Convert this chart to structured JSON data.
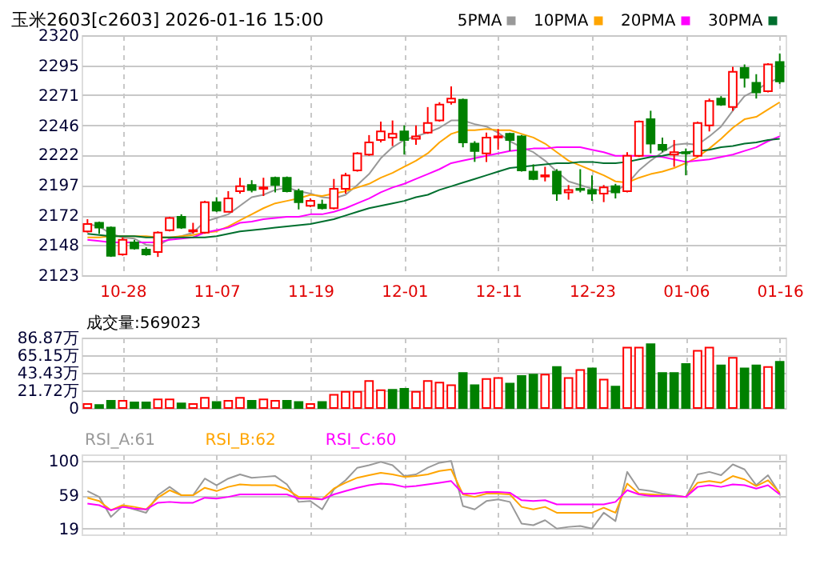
{
  "chart_data": [
    {
      "type": "candlestick",
      "title": "玉米2603[c2603] 2026-01-16 15:00",
      "categories": [
        null,
        null,
        null,
        "10-28",
        null,
        null,
        null,
        null,
        null,
        null,
        null,
        "11-07",
        null,
        null,
        null,
        null,
        null,
        null,
        null,
        "11-19",
        null,
        null,
        null,
        null,
        null,
        null,
        null,
        "12-01",
        null,
        null,
        null,
        null,
        null,
        null,
        null,
        "12-11",
        null,
        null,
        null,
        null,
        null,
        null,
        null,
        "12-23",
        null,
        null,
        null,
        null,
        null,
        null,
        null,
        "01-06",
        null,
        null,
        null,
        null,
        null,
        null,
        null,
        "01-16"
      ],
      "ohlc": [
        [
          2159,
          2169,
          2158,
          2165
        ],
        [
          2166,
          2167,
          2157,
          2162
        ],
        [
          2162,
          2163,
          2138,
          2139
        ],
        [
          2140,
          2154,
          2139,
          2152
        ],
        [
          2150,
          2152,
          2144,
          2145
        ],
        [
          2144,
          2146,
          2139,
          2140
        ],
        [
          2142,
          2159,
          2138,
          2158
        ],
        [
          2160,
          2171,
          2159,
          2170
        ],
        [
          2171,
          2173,
          2161,
          2162
        ],
        [
          2159,
          2166,
          2157,
          2160
        ],
        [
          2158,
          2184,
          2157,
          2183
        ],
        [
          2183,
          2187,
          2175,
          2176
        ],
        [
          2175,
          2192,
          2175,
          2186
        ],
        [
          2192,
          2203,
          2190,
          2196
        ],
        [
          2197,
          2201,
          2191,
          2193
        ],
        [
          2194,
          2203,
          2188,
          2195
        ],
        [
          2203,
          2204,
          2191,
          2197
        ],
        [
          2203,
          2204,
          2191,
          2192
        ],
        [
          2192,
          2194,
          2177,
          2183
        ],
        [
          2180,
          2186,
          2179,
          2184
        ],
        [
          2181,
          2185,
          2177,
          2178
        ],
        [
          2178,
          2202,
          2177,
          2194
        ],
        [
          2194,
          2207,
          2190,
          2205
        ],
        [
          2209,
          2224,
          2208,
          2223
        ],
        [
          2222,
          2238,
          2221,
          2232
        ],
        [
          2234,
          2249,
          2232,
          2241
        ],
        [
          2236,
          2250,
          2229,
          2239
        ],
        [
          2241,
          2246,
          2222,
          2234
        ],
        [
          2235,
          2246,
          2230,
          2237
        ],
        [
          2240,
          2261,
          2239,
          2248
        ],
        [
          2250,
          2265,
          2249,
          2263
        ],
        [
          2265,
          2278,
          2263,
          2268
        ],
        [
          2267,
          2268,
          2228,
          2232
        ],
        [
          2231,
          2233,
          2216,
          2225
        ],
        [
          2223,
          2240,
          2216,
          2236
        ],
        [
          2236,
          2243,
          2226,
          2237
        ],
        [
          2239,
          2240,
          2225,
          2234
        ],
        [
          2237,
          2238,
          2208,
          2209
        ],
        [
          2208,
          2214,
          2201,
          2202
        ],
        [
          2204,
          2212,
          2200,
          2205
        ],
        [
          2208,
          2210,
          2184,
          2190
        ],
        [
          2191,
          2197,
          2185,
          2193
        ],
        [
          2194,
          2210,
          2191,
          2193
        ],
        [
          2193,
          2205,
          2184,
          2190
        ],
        [
          2190,
          2197,
          2183,
          2195
        ],
        [
          2196,
          2198,
          2186,
          2191
        ],
        [
          2192,
          2224,
          2191,
          2221
        ],
        [
          2221,
          2250,
          2220,
          2249
        ],
        [
          2251,
          2258,
          2223,
          2231
        ],
        [
          2230,
          2236,
          2224,
          2226
        ],
        [
          2222,
          2234,
          2212,
          2224
        ],
        [
          2224,
          2227,
          2205,
          2223
        ],
        [
          2221,
          2249,
          2220,
          2248
        ],
        [
          2246,
          2268,
          2241,
          2266
        ],
        [
          2268,
          2270,
          2262,
          2263
        ],
        [
          2261,
          2294,
          2258,
          2290
        ],
        [
          2293,
          2296,
          2277,
          2285
        ],
        [
          2281,
          2288,
          2268,
          2273
        ],
        [
          2274,
          2297,
          2273,
          2296
        ],
        [
          2298,
          2305,
          2280,
          2282
        ]
      ],
      "colors": [
        "#ff0000",
        "#008000",
        "#008000",
        "#ff0000",
        "#008000",
        "#008000",
        "#ff0000",
        "#ff0000",
        "#008000",
        "#ff0000",
        "#ff0000",
        "#008000",
        "#ff0000",
        "#ff0000",
        "#008000",
        "#ff0000",
        "#008000",
        "#008000",
        "#008000",
        "#ff0000",
        "#008000",
        "#ff0000",
        "#ff0000",
        "#ff0000",
        "#ff0000",
        "#ff0000",
        "#ff0000",
        "#008000",
        "#ff0000",
        "#ff0000",
        "#ff0000",
        "#ff0000",
        "#008000",
        "#008000",
        "#ff0000",
        "#ff0000",
        "#008000",
        "#008000",
        "#008000",
        "#ff0000",
        "#008000",
        "#ff0000",
        "#008000",
        "#008000",
        "#ff0000",
        "#008000",
        "#ff0000",
        "#ff0000",
        "#008000",
        "#008000",
        "#ff0000",
        "#008000",
        "#ff0000",
        "#ff0000",
        "#008000",
        "#ff0000",
        "#008000",
        "#008000",
        "#ff0000",
        "#008000"
      ],
      "series": [
        {
          "name": "5PMA",
          "type": "line",
          "color": "#999999",
          "values": [
            2165,
            2163,
            2157,
            2154,
            2153,
            2148,
            2147,
            2153,
            2155,
            2158,
            2167,
            2170,
            2173,
            2180,
            2187,
            2189,
            2193,
            2195,
            2192,
            2190,
            2187,
            2186,
            2189,
            2197,
            2206,
            2219,
            2228,
            2234,
            2237,
            2240,
            2244,
            2250,
            2250,
            2247,
            2245,
            2240,
            2233,
            2228,
            2224,
            2217,
            2208,
            2200,
            2197,
            2194,
            2192,
            2192,
            2198,
            2209,
            2217,
            2224,
            2230,
            2231,
            2230,
            2237,
            2245,
            2258,
            2270,
            2275,
            2281,
            2285
          ]
        },
        {
          "name": "10PMA",
          "type": "line",
          "color": "#ffa500",
          "values": [
            2154,
            2154,
            2155,
            2155,
            2155,
            2155,
            2154,
            2154,
            2155,
            2156,
            2158,
            2159,
            2163,
            2168,
            2173,
            2178,
            2182,
            2184,
            2186,
            2189,
            2188,
            2190,
            2192,
            2195,
            2198,
            2203,
            2207,
            2212,
            2217,
            2223,
            2232,
            2239,
            2242,
            2242,
            2243,
            2242,
            2242,
            2239,
            2236,
            2231,
            2224,
            2217,
            2213,
            2209,
            2205,
            2200,
            2199,
            2203,
            2206,
            2208,
            2211,
            2215,
            2220,
            2227,
            2235,
            2244,
            2251,
            2253,
            2259,
            2265
          ]
        },
        {
          "name": "20PMA",
          "type": "line",
          "color": "#ff00ff",
          "values": [
            2152,
            2151,
            2150,
            2150,
            2150,
            2150,
            2150,
            2152,
            2153,
            2154,
            2158,
            2160,
            2162,
            2166,
            2167,
            2169,
            2170,
            2171,
            2171,
            2173,
            2173,
            2175,
            2178,
            2182,
            2186,
            2191,
            2195,
            2198,
            2202,
            2206,
            2210,
            2215,
            2217,
            2219,
            2221,
            2223,
            2225,
            2226,
            2227,
            2227,
            2228,
            2228,
            2228,
            2226,
            2224,
            2221,
            2221,
            2221,
            2221,
            2220,
            2218,
            2216,
            2217,
            2218,
            2220,
            2222,
            2225,
            2228,
            2233,
            2237
          ]
        },
        {
          "name": "30PMA",
          "type": "line",
          "color": "#006f2e",
          "values": [
            2157,
            2156,
            2155,
            2155,
            2155,
            2154,
            2154,
            2154,
            2154,
            2154,
            2154,
            2155,
            2157,
            2159,
            2160,
            2161,
            2162,
            2163,
            2164,
            2165,
            2167,
            2169,
            2172,
            2175,
            2178,
            2180,
            2182,
            2184,
            2187,
            2189,
            2193,
            2196,
            2199,
            2202,
            2205,
            2208,
            2211,
            2212,
            2213,
            2214,
            2215,
            2215,
            2216,
            2216,
            2215,
            2215,
            2216,
            2218,
            2220,
            2221,
            2223,
            2224,
            2225,
            2226,
            2228,
            2229,
            2231,
            2232,
            2234,
            2235
          ]
        }
      ],
      "ylim": [
        2123,
        2320
      ],
      "yticks": [
        2123,
        2148,
        2172,
        2197,
        2222,
        2246,
        2271,
        2295,
        2320
      ],
      "grid": true,
      "legend": "top right"
    },
    {
      "type": "bar",
      "title": "成交量:569023",
      "categories": [
        null,
        null,
        null,
        null,
        null,
        null,
        null,
        null,
        null,
        null,
        null,
        null,
        null,
        null,
        null,
        null,
        null,
        null,
        null,
        null,
        null,
        null,
        null,
        null,
        null,
        null,
        null,
        null,
        null,
        null,
        null,
        null,
        null,
        null,
        null,
        null,
        null,
        null,
        null,
        null,
        null,
        null,
        null,
        null,
        null,
        null,
        null,
        null,
        null,
        null,
        null,
        null,
        null,
        null,
        null,
        null,
        null,
        null,
        null,
        null
      ],
      "values": [
        5.0,
        3.8,
        8.8,
        8.8,
        6.9,
        6.9,
        10.6,
        10.6,
        5.6,
        5.0,
        12.5,
        7.5,
        8.8,
        12.5,
        8.8,
        10.6,
        8.8,
        8.8,
        7.5,
        5.0,
        7.5,
        16.3,
        20.0,
        20.0,
        33.2,
        21.9,
        22.5,
        23.8,
        20.0,
        33.2,
        31.3,
        28.2,
        43.2,
        28.2,
        35.7,
        36.9,
        30.0,
        39.4,
        41.3,
        41.3,
        50.7,
        36.9,
        46.9,
        48.8,
        35.0,
        26.3,
        74.5,
        74.5,
        78.8,
        43.2,
        43.2,
        54.4,
        70.7,
        74.5,
        52.6,
        62.0,
        48.8,
        52.6,
        50.7,
        56.9
      ],
      "colors": [
        "#ff0000",
        "#008000",
        "#008000",
        "#ff0000",
        "#008000",
        "#008000",
        "#ff0000",
        "#ff0000",
        "#008000",
        "#ff0000",
        "#ff0000",
        "#008000",
        "#ff0000",
        "#ff0000",
        "#008000",
        "#ff0000",
        "#ff0000",
        "#008000",
        "#008000",
        "#ff0000",
        "#008000",
        "#ff0000",
        "#ff0000",
        "#ff0000",
        "#ff0000",
        "#ff0000",
        "#008000",
        "#008000",
        "#ff0000",
        "#ff0000",
        "#ff0000",
        "#ff0000",
        "#008000",
        "#008000",
        "#ff0000",
        "#ff0000",
        "#008000",
        "#008000",
        "#008000",
        "#ff0000",
        "#008000",
        "#ff0000",
        "#ff0000",
        "#008000",
        "#ff0000",
        "#008000",
        "#ff0000",
        "#ff0000",
        "#008000",
        "#008000",
        "#008000",
        "#008000",
        "#ff0000",
        "#ff0000",
        "#008000",
        "#ff0000",
        "#008000",
        "#008000",
        "#ff0000",
        "#008000"
      ],
      "ylim": [
        0,
        86.87
      ],
      "yticks": [
        {
          "value": 0,
          "label": "0"
        },
        {
          "value": 21.72,
          "label": "21.72万"
        },
        {
          "value": 43.43,
          "label": "43.43万"
        },
        {
          "value": 65.15,
          "label": "65.15万"
        },
        {
          "value": 86.87,
          "label": "86.87万"
        }
      ],
      "grid": true,
      "tick_labels": "y"
    },
    {
      "type": "line",
      "categories": [
        null,
        null,
        null,
        null,
        null,
        null,
        null,
        null,
        null,
        null,
        null,
        null,
        null,
        null,
        null,
        null,
        null,
        null,
        null,
        null,
        null,
        null,
        null,
        null,
        null,
        null,
        null,
        null,
        null,
        null,
        null,
        null,
        null,
        null,
        null,
        null,
        null,
        null,
        null,
        null,
        null,
        null,
        null,
        null,
        null,
        null,
        null,
        null,
        null,
        null,
        null,
        null,
        null,
        null,
        null,
        null,
        null,
        null,
        null,
        null
      ],
      "series": [
        {
          "name": "RSI_A:61",
          "color": "#999999",
          "values": [
            64,
            57,
            33,
            46,
            42,
            38,
            59,
            69,
            59,
            59,
            79,
            71,
            79,
            84,
            80,
            81,
            82,
            72,
            51,
            52,
            42,
            66,
            77,
            92,
            95,
            99,
            95,
            82,
            84,
            92,
            98,
            100,
            46,
            42,
            52,
            54,
            51,
            25,
            23,
            29,
            19,
            21,
            22,
            19,
            38,
            28,
            87,
            66,
            64,
            61,
            59,
            57,
            84,
            87,
            83,
            96,
            90,
            71,
            83,
            61
          ]
        },
        {
          "name": "RSI_B:62",
          "color": "#ffa500",
          "values": [
            56,
            52,
            41,
            47,
            45,
            42,
            56,
            65,
            59,
            59,
            68,
            64,
            69,
            72,
            71,
            71,
            71,
            66,
            57,
            57,
            54,
            67,
            74,
            80,
            83,
            86,
            84,
            81,
            82,
            84,
            88,
            90,
            60,
            57,
            61,
            61,
            60,
            45,
            42,
            45,
            38,
            38,
            38,
            38,
            44,
            38,
            73,
            61,
            60,
            59,
            58,
            57,
            74,
            76,
            74,
            82,
            78,
            70,
            77,
            62
          ]
        },
        {
          "name": "RSI_C:60",
          "color": "#ff00ff",
          "values": [
            49,
            47,
            41,
            45,
            43,
            42,
            50,
            51,
            50,
            50,
            56,
            55,
            57,
            60,
            60,
            60,
            60,
            60,
            55,
            55,
            54,
            60,
            64,
            68,
            71,
            73,
            72,
            69,
            70,
            72,
            74,
            76,
            61,
            61,
            63,
            63,
            62,
            53,
            52,
            53,
            48,
            48,
            48,
            48,
            48,
            51,
            65,
            60,
            58,
            58,
            58,
            57,
            69,
            71,
            69,
            72,
            71,
            67,
            71,
            60
          ]
        }
      ],
      "ylim": [
        12,
        108
      ],
      "yticks": [
        19,
        59,
        100
      ],
      "grid": true,
      "tick_labels": "y",
      "legend": "top left"
    }
  ]
}
